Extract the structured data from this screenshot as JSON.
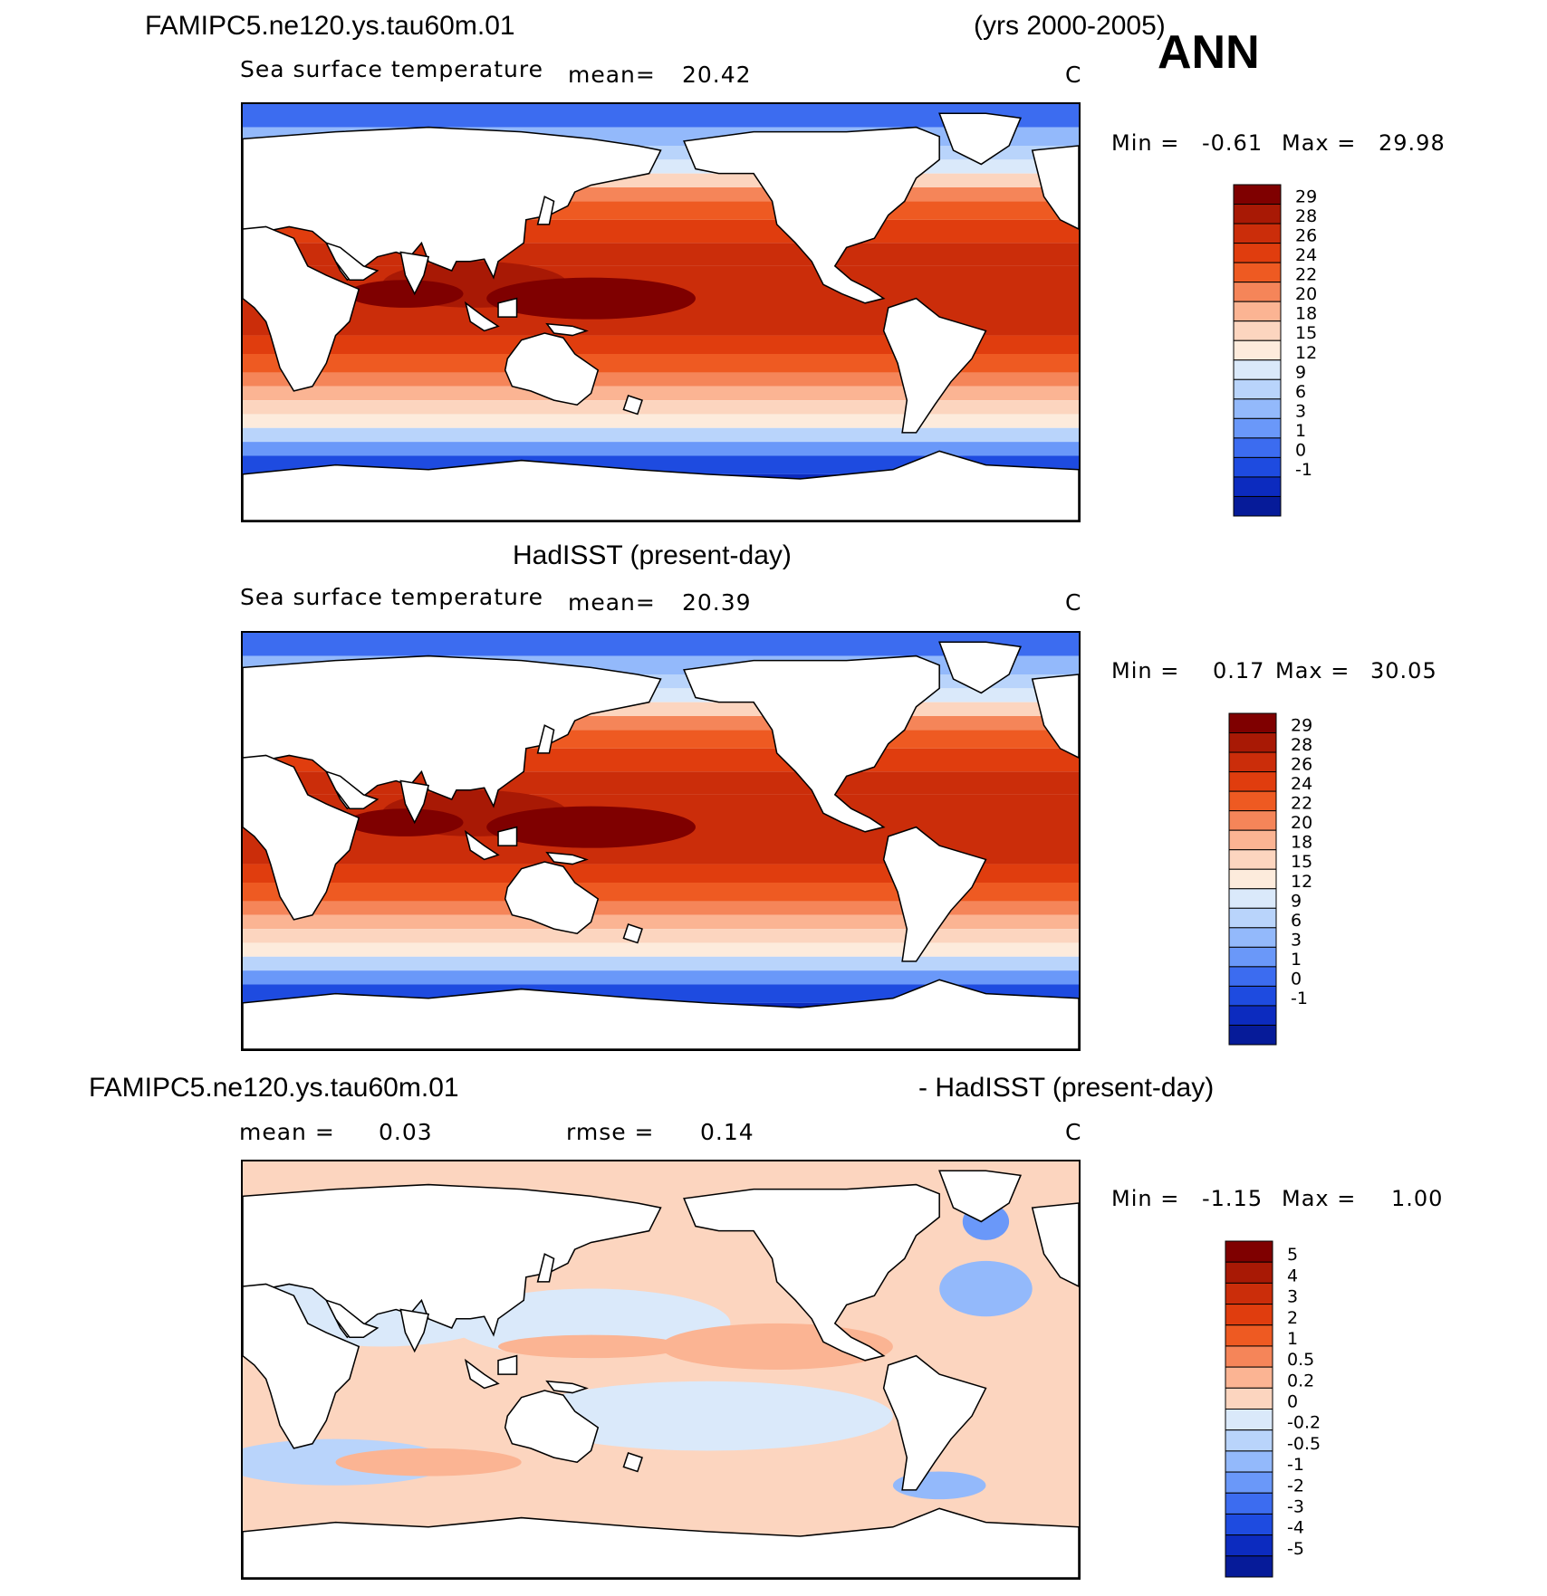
{
  "header": {
    "case_name": "FAMIPC5.ne120.ys.tau60m.01",
    "years": "(yrs 2000-2005)",
    "season": "ANN"
  },
  "panels": [
    {
      "title": "",
      "variable": "Sea surface temperature",
      "mean_label": "mean=",
      "mean_value": "20.42",
      "units": "C",
      "min_label": "Min =",
      "min_value": "-0.61",
      "max_label": "Max =",
      "max_value": "29.98",
      "colorbar_labels": [
        "29",
        "28",
        "26",
        "24",
        "22",
        "20",
        "18",
        "15",
        "12",
        "9",
        "6",
        "3",
        "1",
        "0",
        "-1"
      ],
      "colorbar_colors": [
        "#7f0000",
        "#a81905",
        "#cb2d0a",
        "#e03d0e",
        "#ee5a22",
        "#f58559",
        "#fbb493",
        "#fcd5bf",
        "#fdebdc",
        "#dae9fa",
        "#b9d4fb",
        "#93b9fb",
        "#6a98f9",
        "#3c6cf0",
        "#1e4be0",
        "#0c2bbf",
        "#061b99"
      ]
    },
    {
      "title": "HadISST (present-day)",
      "variable": "Sea surface temperature",
      "mean_label": "mean=",
      "mean_value": "20.39",
      "units": "C",
      "min_label": "Min =",
      "min_value": "0.17",
      "max_label": "Max =",
      "max_value": "30.05",
      "colorbar_labels": [
        "29",
        "28",
        "26",
        "24",
        "22",
        "20",
        "18",
        "15",
        "12",
        "9",
        "6",
        "3",
        "1",
        "0",
        "-1"
      ],
      "colorbar_colors": [
        "#7f0000",
        "#a81905",
        "#cb2d0a",
        "#e03d0e",
        "#ee5a22",
        "#f58559",
        "#fbb493",
        "#fcd5bf",
        "#fdebdc",
        "#dae9fa",
        "#b9d4fb",
        "#93b9fb",
        "#6a98f9",
        "#3c6cf0",
        "#1e4be0",
        "#0c2bbf",
        "#061b99"
      ]
    },
    {
      "title_left": "FAMIPC5.ne120.ys.tau60m.01",
      "title_right": "- HadISST (present-day)",
      "mean_label": "mean =",
      "mean_value": "0.03",
      "rmse_label": "rmse =",
      "rmse_value": "0.14",
      "units": "C",
      "min_label": "Min =",
      "min_value": "-1.15",
      "max_label": "Max =",
      "max_value": "1.00",
      "colorbar_labels": [
        "5",
        "4",
        "3",
        "2",
        "1",
        "0.5",
        "0.2",
        "0",
        "-0.2",
        "-0.5",
        "-1",
        "-2",
        "-3",
        "-4",
        "-5"
      ],
      "colorbar_colors": [
        "#7f0000",
        "#a81905",
        "#cb2d0a",
        "#e03d0e",
        "#ee5a22",
        "#f58559",
        "#fbb493",
        "#fcd5bf",
        "#dae9fa",
        "#b9d4fb",
        "#93b9fb",
        "#6a98f9",
        "#3c6cf0",
        "#1e4be0",
        "#0c2bbf",
        "#061b99"
      ]
    }
  ],
  "map_colors": {
    "land": "#ffffff",
    "coast": "#000000"
  }
}
